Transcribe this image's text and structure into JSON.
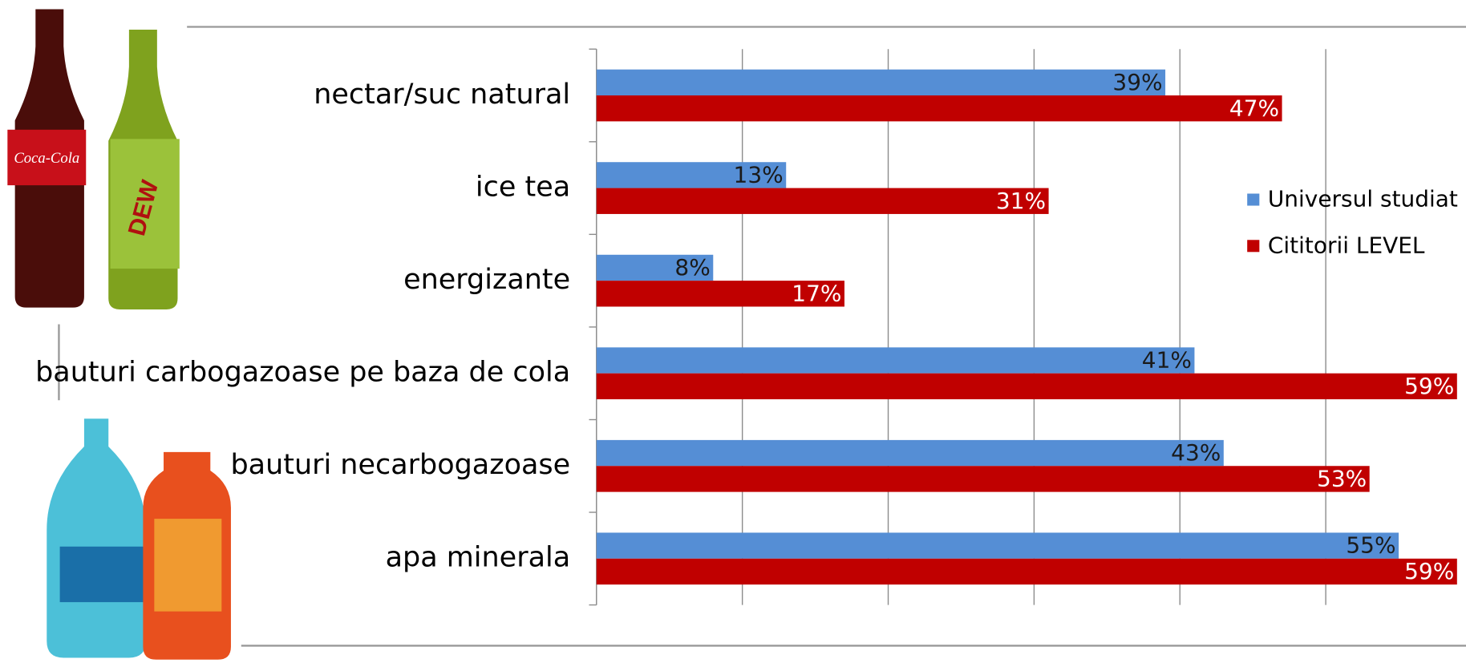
{
  "chart_data": {
    "type": "bar",
    "orientation": "horizontal",
    "categories": [
      "nectar/suc natural",
      "ice tea",
      "energizante",
      "bauturi carbogazoase pe baza de cola",
      "bauturi necarbogazoase",
      "apa minerala"
    ],
    "series": [
      {
        "name": "Universul studiat",
        "color": "#558ed5",
        "values": [
          39,
          13,
          8,
          41,
          43,
          55
        ],
        "value_labels": [
          "39%",
          "13%",
          "8%",
          "41%",
          "43%",
          "55%"
        ]
      },
      {
        "name": "Cititorii LEVEL",
        "color": "#c00000",
        "values": [
          47,
          31,
          17,
          59,
          53,
          59
        ],
        "value_labels": [
          "47%",
          "31%",
          "17%",
          "59%",
          "53%",
          "59%"
        ]
      }
    ],
    "xlim": [
      0,
      60
    ],
    "xticks": [
      0,
      10,
      20,
      30,
      40,
      50
    ],
    "grid": true,
    "legend": "right"
  }
}
